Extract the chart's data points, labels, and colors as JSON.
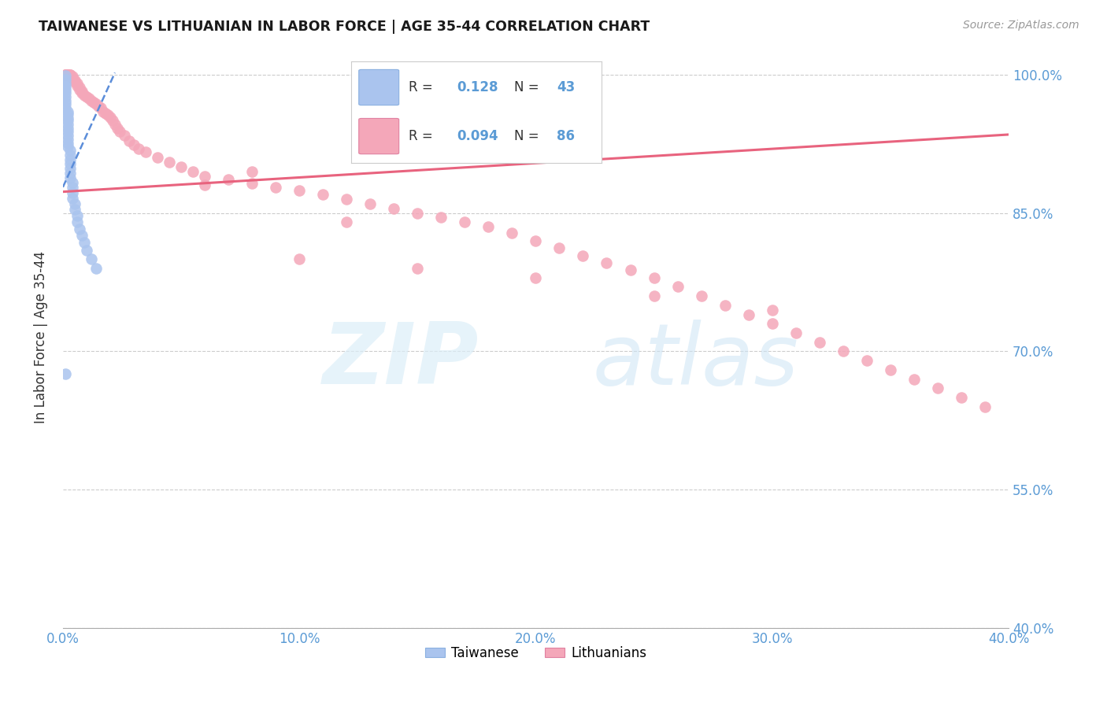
{
  "title": "TAIWANESE VS LITHUANIAN IN LABOR FORCE | AGE 35-44 CORRELATION CHART",
  "source": "Source: ZipAtlas.com",
  "ylabel": "In Labor Force | Age 35-44",
  "xlim": [
    0.0,
    0.4
  ],
  "ylim": [
    0.4,
    1.03
  ],
  "ytick_labels": [
    "40.0%",
    "55.0%",
    "70.0%",
    "85.0%",
    "100.0%"
  ],
  "ytick_values": [
    0.4,
    0.55,
    0.7,
    0.85,
    1.0
  ],
  "xtick_labels": [
    "0.0%",
    "10.0%",
    "20.0%",
    "30.0%",
    "40.0%"
  ],
  "xtick_values": [
    0.0,
    0.1,
    0.2,
    0.3,
    0.4
  ],
  "taiwanese_color": "#aac4ee",
  "lithuanian_color": "#f4a7b9",
  "taiwanese_R": 0.128,
  "taiwanese_N": 43,
  "lithuanian_R": 0.094,
  "lithuanian_N": 86,
  "taiwanese_line_color": "#5b8dd9",
  "lithuanian_line_color": "#e8637e",
  "background_color": "#ffffff",
  "grid_color": "#cccccc",
  "tick_label_color": "#5b9bd5",
  "taiwanese_x": [
    0.001,
    0.001,
    0.001,
    0.001,
    0.001,
    0.001,
    0.001,
    0.001,
    0.001,
    0.001,
    0.002,
    0.002,
    0.002,
    0.002,
    0.002,
    0.002,
    0.002,
    0.002,
    0.002,
    0.002,
    0.002,
    0.003,
    0.003,
    0.003,
    0.003,
    0.003,
    0.003,
    0.003,
    0.004,
    0.004,
    0.004,
    0.004,
    0.005,
    0.005,
    0.006,
    0.006,
    0.007,
    0.008,
    0.009,
    0.01,
    0.012,
    0.014,
    0.001
  ],
  "taiwanese_y": [
    0.999,
    0.995,
    0.99,
    0.987,
    0.984,
    0.98,
    0.976,
    0.972,
    0.968,
    0.964,
    0.96,
    0.957,
    0.953,
    0.95,
    0.946,
    0.942,
    0.938,
    0.934,
    0.93,
    0.926,
    0.922,
    0.918,
    0.913,
    0.908,
    0.903,
    0.898,
    0.893,
    0.888,
    0.883,
    0.878,
    0.872,
    0.866,
    0.86,
    0.854,
    0.847,
    0.84,
    0.833,
    0.826,
    0.818,
    0.81,
    0.8,
    0.79,
    0.676
  ],
  "lithuanian_x": [
    0.001,
    0.001,
    0.001,
    0.002,
    0.002,
    0.002,
    0.003,
    0.003,
    0.003,
    0.004,
    0.004,
    0.005,
    0.005,
    0.006,
    0.006,
    0.007,
    0.007,
    0.008,
    0.008,
    0.009,
    0.01,
    0.011,
    0.012,
    0.013,
    0.014,
    0.015,
    0.016,
    0.017,
    0.018,
    0.019,
    0.02,
    0.021,
    0.022,
    0.023,
    0.024,
    0.026,
    0.028,
    0.03,
    0.032,
    0.035,
    0.04,
    0.045,
    0.05,
    0.055,
    0.06,
    0.07,
    0.08,
    0.09,
    0.1,
    0.11,
    0.12,
    0.13,
    0.14,
    0.15,
    0.16,
    0.17,
    0.18,
    0.19,
    0.2,
    0.21,
    0.22,
    0.23,
    0.24,
    0.25,
    0.26,
    0.27,
    0.28,
    0.29,
    0.3,
    0.31,
    0.32,
    0.33,
    0.34,
    0.35,
    0.36,
    0.37,
    0.38,
    0.39,
    0.1,
    0.15,
    0.2,
    0.25,
    0.3,
    0.12,
    0.08,
    0.06
  ],
  "lithuanian_y": [
    1.0,
    1.0,
    1.0,
    1.0,
    1.0,
    1.0,
    1.0,
    1.0,
    0.998,
    0.998,
    0.996,
    0.994,
    0.992,
    0.99,
    0.988,
    0.986,
    0.984,
    0.982,
    0.98,
    0.978,
    0.976,
    0.974,
    0.972,
    0.97,
    0.968,
    0.966,
    0.964,
    0.96,
    0.958,
    0.956,
    0.954,
    0.95,
    0.946,
    0.942,
    0.938,
    0.934,
    0.928,
    0.924,
    0.92,
    0.916,
    0.91,
    0.905,
    0.9,
    0.895,
    0.89,
    0.886,
    0.882,
    0.878,
    0.874,
    0.87,
    0.865,
    0.86,
    0.855,
    0.85,
    0.845,
    0.84,
    0.835,
    0.828,
    0.82,
    0.812,
    0.804,
    0.796,
    0.788,
    0.78,
    0.77,
    0.76,
    0.75,
    0.74,
    0.73,
    0.72,
    0.71,
    0.7,
    0.69,
    0.68,
    0.67,
    0.66,
    0.65,
    0.64,
    0.8,
    0.79,
    0.78,
    0.76,
    0.745,
    0.84,
    0.895,
    0.88
  ]
}
